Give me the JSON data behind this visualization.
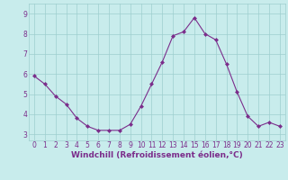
{
  "x": [
    0,
    1,
    2,
    3,
    4,
    5,
    6,
    7,
    8,
    9,
    10,
    11,
    12,
    13,
    14,
    15,
    16,
    17,
    18,
    19,
    20,
    21,
    22,
    23
  ],
  "y": [
    5.9,
    5.5,
    4.9,
    4.5,
    3.8,
    3.4,
    3.2,
    3.2,
    3.2,
    3.5,
    4.4,
    5.5,
    6.6,
    7.9,
    8.1,
    8.8,
    8.0,
    7.7,
    6.5,
    5.1,
    3.9,
    3.4,
    3.6,
    3.4
  ],
  "line_color": "#7b2d8b",
  "marker": "D",
  "marker_size": 2,
  "bg_color": "#c8ecec",
  "grid_color": "#9ecece",
  "xlabel": "Windchill (Refroidissement éolien,°C)",
  "xlabel_color": "#7b2d8b",
  "tick_color": "#7b2d8b",
  "ylim": [
    2.7,
    9.5
  ],
  "xlim": [
    -0.5,
    23.5
  ],
  "yticks": [
    3,
    4,
    5,
    6,
    7,
    8,
    9
  ],
  "xticks": [
    0,
    1,
    2,
    3,
    4,
    5,
    6,
    7,
    8,
    9,
    10,
    11,
    12,
    13,
    14,
    15,
    16,
    17,
    18,
    19,
    20,
    21,
    22,
    23
  ],
  "tick_fontsize": 5.5,
  "xlabel_fontsize": 6.5
}
